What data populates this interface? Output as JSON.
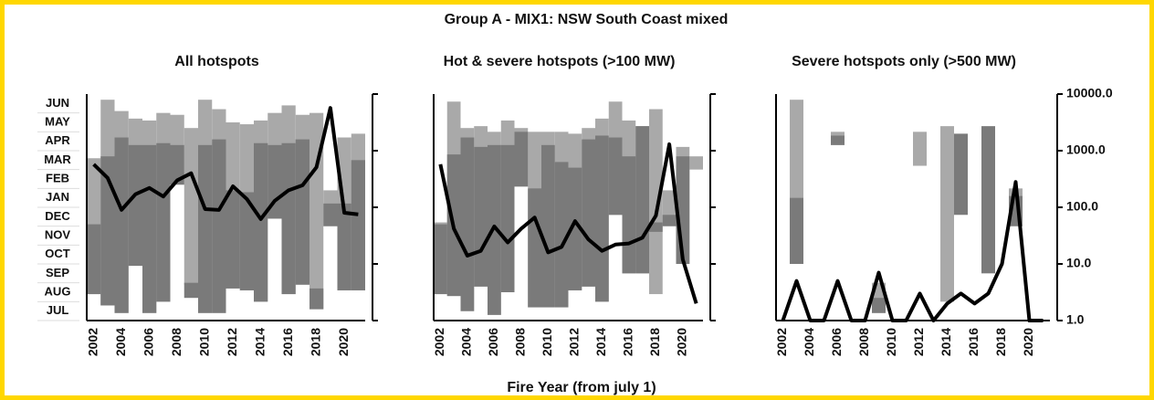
{
  "title": "Group A - MIX1: NSW South Coast mixed",
  "x_label": "Fire Year (from july 1)",
  "chart_data": [
    {
      "type": "floating-bar-line",
      "title": "All hotspots",
      "categories": [
        "2002",
        null,
        "2004",
        null,
        "2006",
        null,
        "2008",
        null,
        "2010",
        null,
        "2012",
        null,
        "2014",
        null,
        "2016",
        null,
        "2018",
        null,
        "2020",
        null
      ],
      "ylim": [
        0,
        12
      ],
      "yticks": [
        {
          "value": 0.5,
          "label": "JUL"
        },
        {
          "value": 1.5,
          "label": "AUG"
        },
        {
          "value": 2.5,
          "label": "SEP"
        },
        {
          "value": 3.5,
          "label": "OCT"
        },
        {
          "value": 4.5,
          "label": "NOV"
        },
        {
          "value": 5.5,
          "label": "DEC"
        },
        {
          "value": 6.5,
          "label": "JAN"
        },
        {
          "value": 7.5,
          "label": "FEB"
        },
        {
          "value": 8.5,
          "label": "MAR"
        },
        {
          "value": 9.5,
          "label": "APR"
        },
        {
          "value": 10.5,
          "label": "MAY"
        },
        {
          "value": 11.5,
          "label": "JUN"
        }
      ],
      "y2lim": [
        1,
        10000
      ],
      "y2log": true,
      "y2ticks": [
        1,
        10,
        100,
        1000,
        10000
      ],
      "y2tick_labels": false,
      "ranges": [
        {
          "color": "#a9a9a9",
          "low": [
            1.4,
            0.8,
            0.4,
            2.9,
            0.4,
            1.0,
            7.2,
            1.9,
            0.4,
            0.4,
            1.7,
            1.6,
            1.0,
            5.4,
            1.4,
            1.9,
            0.6,
            5.0,
            1.6,
            1.6
          ],
          "high": [
            8.6,
            11.7,
            11.1,
            10.7,
            10.6,
            11.0,
            10.9,
            10.2,
            11.7,
            11.2,
            10.5,
            10.4,
            10.6,
            11.0,
            11.4,
            10.9,
            11.0,
            6.9,
            9.7,
            9.9
          ]
        },
        {
          "color": "#7a7a7a",
          "low": [
            1.4,
            0.8,
            0.4,
            2.9,
            0.4,
            1.0,
            7.2,
            1.2,
            0.4,
            0.4,
            1.7,
            1.6,
            1.0,
            5.4,
            1.4,
            1.9,
            0.6,
            5.0,
            1.6,
            1.6
          ],
          "high": [
            5.1,
            8.7,
            9.7,
            9.3,
            9.3,
            9.4,
            9.3,
            2.0,
            9.3,
            9.6,
            6.9,
            6.8,
            9.4,
            9.3,
            9.4,
            9.6,
            1.7,
            6.2,
            6.2,
            8.5
          ]
        }
      ],
      "line": {
        "color": "#000000",
        "axis": "y2",
        "values": [
          575,
          330,
          90,
          170,
          220,
          155,
          300,
          400,
          93,
          90,
          235,
          140,
          62,
          130,
          200,
          245,
          510,
          5700,
          80,
          75
        ]
      }
    },
    {
      "type": "floating-bar-line",
      "title": "Hot & severe hotspots (>100 MW)",
      "categories": [
        "2002",
        null,
        "2004",
        null,
        "2006",
        null,
        "2008",
        null,
        "2010",
        null,
        "2012",
        null,
        "2014",
        null,
        "2016",
        null,
        "2018",
        null,
        "2020",
        null
      ],
      "ylim": [
        0,
        12
      ],
      "y2lim": [
        1,
        10000
      ],
      "y2log": true,
      "y2ticks": [
        1,
        10,
        100,
        1000,
        10000
      ],
      "y2tick_labels": false,
      "ranges": [
        {
          "color": "#a9a9a9",
          "low": [
            1.4,
            1.3,
            0.5,
            1.8,
            0.3,
            1.5,
            7.1,
            0.7,
            0.7,
            0.7,
            1.6,
            1.8,
            1.0,
            5.6,
            2.5,
            2.5,
            1.4,
            5.0,
            3.0,
            8.0
          ],
          "high": [
            5.2,
            11.6,
            10.2,
            10.3,
            10.0,
            10.6,
            10.2,
            10.0,
            10.0,
            10.0,
            9.9,
            10.2,
            10.7,
            11.6,
            10.6,
            10.3,
            11.2,
            6.9,
            9.2,
            8.7
          ]
        },
        {
          "color": "#7a7a7a",
          "low": [
            1.4,
            1.3,
            0.5,
            1.8,
            0.3,
            1.5,
            7.1,
            0.7,
            0.7,
            0.7,
            1.6,
            1.8,
            1.0,
            5.6,
            2.5,
            2.5,
            4.7,
            5.0,
            3.0,
            null
          ],
          "high": [
            5.1,
            8.8,
            9.7,
            9.2,
            9.3,
            9.3,
            10.0,
            7.0,
            9.3,
            8.4,
            8.1,
            9.6,
            9.8,
            9.7,
            8.7,
            10.3,
            5.2,
            5.6,
            8.7,
            null
          ]
        }
      ],
      "line": {
        "color": "#000000",
        "axis": "y2",
        "values": [
          575,
          42,
          14,
          17,
          46,
          24,
          42,
          66,
          16,
          20,
          57,
          27,
          17,
          22,
          23,
          29,
          71,
          1300,
          12,
          2
        ]
      }
    },
    {
      "type": "floating-bar-line",
      "title": "Severe hotspots only (>500 MW)",
      "categories": [
        "2002",
        null,
        "2004",
        null,
        "2006",
        null,
        "2008",
        null,
        "2010",
        null,
        "2012",
        null,
        "2014",
        null,
        "2016",
        null,
        "2018",
        null,
        "2020",
        null
      ],
      "ylim": [
        0,
        12
      ],
      "y2lim": [
        1,
        10000
      ],
      "y2log": true,
      "y2ticks": [
        {
          "value": 1,
          "label": "1.0"
        },
        {
          "value": 10,
          "label": "10.0"
        },
        {
          "value": 100,
          "label": "100.0"
        },
        {
          "value": 1000,
          "label": "1000.0"
        },
        {
          "value": 10000,
          "label": "10000.0"
        }
      ],
      "y2tick_labels": true,
      "ranges": [
        {
          "color": "#a9a9a9",
          "low": [
            null,
            3.0,
            null,
            null,
            9.3,
            null,
            null,
            0.4,
            null,
            null,
            8.2,
            null,
            1.0,
            null,
            null,
            null,
            null,
            5.0,
            null,
            null
          ],
          "high": [
            null,
            11.7,
            null,
            null,
            10.0,
            null,
            null,
            2.0,
            null,
            null,
            10.0,
            null,
            10.3,
            null,
            null,
            null,
            null,
            7.0,
            null,
            null
          ]
        },
        {
          "color": "#7a7a7a",
          "low": [
            null,
            3.0,
            null,
            null,
            9.3,
            null,
            null,
            0.4,
            null,
            null,
            null,
            null,
            null,
            5.6,
            null,
            2.5,
            null,
            5.0,
            null,
            null
          ],
          "high": [
            null,
            6.5,
            null,
            null,
            9.8,
            null,
            null,
            1.2,
            null,
            null,
            null,
            null,
            null,
            9.9,
            null,
            10.3,
            null,
            6.6,
            null,
            null
          ]
        }
      ],
      "line": {
        "color": "#000000",
        "axis": "y2",
        "values": [
          1,
          5,
          1,
          1,
          5,
          1,
          1,
          7,
          1,
          1,
          3,
          1,
          2,
          3,
          2,
          3,
          10,
          280,
          1,
          1
        ]
      }
    }
  ]
}
